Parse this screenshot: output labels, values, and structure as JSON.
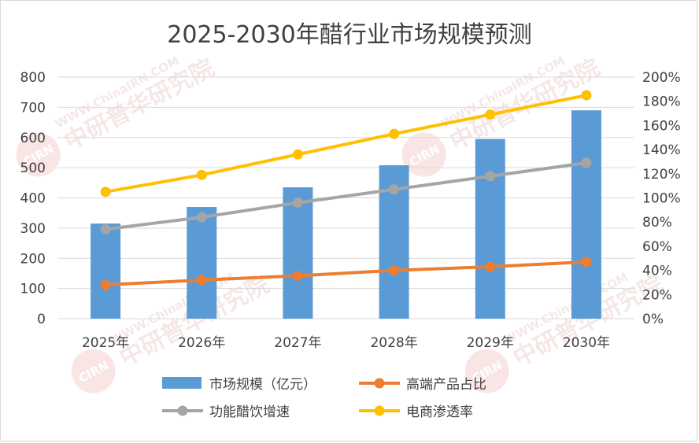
{
  "chart_data": {
    "type": "bar",
    "title": "2025-2030年醋行业市场规模预测",
    "categories": [
      "2025年",
      "2026年",
      "2027年",
      "2028年",
      "2029年",
      "2030年"
    ],
    "y_left": {
      "ylim": [
        0,
        800
      ],
      "ticks": [
        "0",
        "100",
        "200",
        "300",
        "400",
        "500",
        "600",
        "700",
        "800"
      ]
    },
    "y_right": {
      "ylim": [
        0,
        200
      ],
      "ticks": [
        "0%",
        "20%",
        "40%",
        "60%",
        "80%",
        "100%",
        "120%",
        "140%",
        "160%",
        "180%",
        "200%"
      ]
    },
    "series": [
      {
        "name": "市场规模（亿元）",
        "type": "bar",
        "axis": "left",
        "color": "#5b9bd5",
        "values": [
          315,
          370,
          435,
          508,
          595,
          690
        ]
      },
      {
        "name": "高端产品占比",
        "type": "line",
        "axis": "right",
        "color": "#ed7d31",
        "values": [
          28,
          32,
          35.5,
          40,
          43,
          47
        ]
      },
      {
        "name": "功能醋饮增速",
        "type": "line",
        "axis": "right",
        "color": "#a5a5a5",
        "values": [
          74,
          84,
          96,
          107,
          118,
          129
        ]
      },
      {
        "name": "电商渗透率",
        "type": "line",
        "axis": "right",
        "color": "#ffc000",
        "values": [
          105,
          119,
          136,
          153,
          169,
          185
        ]
      }
    ],
    "grid": true,
    "legend_position": "bottom",
    "watermark": {
      "url": "WWW.ChinaIRN.COM",
      "name": "中研普华研究院",
      "logo": "CIRN"
    }
  }
}
